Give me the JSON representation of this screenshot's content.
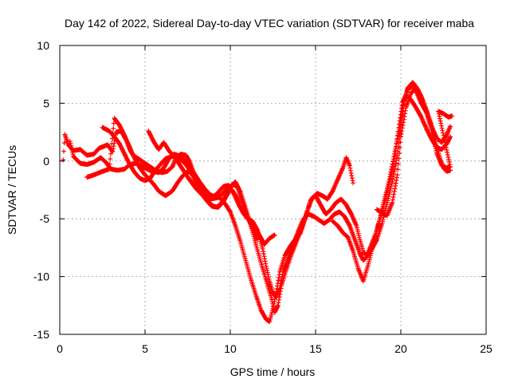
{
  "chart_data": {
    "type": "scatter",
    "title": "Day 142 of 2022, Sidereal Day-to-day VTEC variation (SDTVAR) for receiver maba",
    "xlabel": "GPS time / hours",
    "ylabel": "SDTVAR / TECUs",
    "xlim": [
      0,
      25
    ],
    "ylim": [
      -15,
      10
    ],
    "xticks": [
      0,
      5,
      10,
      15,
      20,
      25
    ],
    "yticks": [
      -15,
      -10,
      -5,
      0,
      5,
      10
    ],
    "grid": true,
    "marker": "+",
    "color": "#ff0000",
    "series": [
      {
        "values": [
          [
            0.2,
            0.1
          ],
          [
            0.3,
            2.3
          ],
          [
            0.5,
            1.4
          ],
          [
            0.8,
            0.9
          ],
          [
            1.2,
            1.0
          ],
          [
            1.6,
            0.5
          ],
          [
            2.0,
            0.6
          ],
          [
            2.3,
            1.1
          ],
          [
            2.8,
            1.4
          ],
          [
            3.1,
            0.8
          ],
          [
            3.3,
            2.5
          ],
          [
            3.6,
            2.6
          ],
          [
            3.9,
            1.8
          ],
          [
            4.1,
            1.0
          ],
          [
            4.3,
            0.5
          ],
          [
            4.6,
            0.2
          ],
          [
            5.0,
            -0.2
          ],
          [
            5.3,
            -0.5
          ],
          [
            5.6,
            -0.8
          ],
          [
            6.0,
            -1.0
          ],
          [
            6.3,
            -0.9
          ],
          [
            6.6,
            -0.5
          ],
          [
            6.8,
            0.2
          ],
          [
            7.1,
            0.6
          ],
          [
            7.4,
            0.5
          ],
          [
            7.6,
            0.0
          ],
          [
            7.8,
            -0.8
          ],
          [
            8.1,
            -1.8
          ],
          [
            8.4,
            -2.8
          ],
          [
            8.7,
            -3.5
          ],
          [
            9.0,
            -3.9
          ],
          [
            9.3,
            -4.0
          ],
          [
            9.6,
            -3.5
          ],
          [
            9.9,
            -2.7
          ],
          [
            10.1,
            -2.0
          ],
          [
            10.4,
            -2.2
          ],
          [
            10.7,
            -3.5
          ],
          [
            11.0,
            -4.8
          ],
          [
            11.2,
            -5.5
          ],
          [
            11.4,
            -6.2
          ],
          [
            11.6,
            -6.8
          ]
        ]
      },
      {
        "values": [
          [
            0.6,
            1.7
          ],
          [
            0.8,
            0.4
          ],
          [
            1.2,
            -0.2
          ],
          [
            1.6,
            -0.3
          ],
          [
            2.0,
            -0.1
          ],
          [
            2.4,
            0.3
          ],
          [
            2.7,
            -0.1
          ],
          [
            3.0,
            -0.7
          ],
          [
            3.4,
            -0.8
          ],
          [
            3.8,
            -0.7
          ],
          [
            4.1,
            -0.3
          ],
          [
            4.5,
            -0.2
          ],
          [
            5.0,
            -0.6
          ],
          [
            5.4,
            -0.9
          ],
          [
            5.8,
            -1.0
          ],
          [
            6.1,
            -0.6
          ],
          [
            6.4,
            0.2
          ],
          [
            6.7,
            0.6
          ],
          [
            7.1,
            0.4
          ],
          [
            7.5,
            -0.2
          ],
          [
            7.8,
            -1.0
          ],
          [
            8.1,
            -1.8
          ],
          [
            8.4,
            -2.6
          ],
          [
            8.7,
            -3.1
          ],
          [
            9.0,
            -3.1
          ],
          [
            9.3,
            -2.7
          ],
          [
            9.6,
            -2.2
          ],
          [
            9.9,
            -2.1
          ],
          [
            10.2,
            -2.8
          ],
          [
            10.5,
            -3.8
          ],
          [
            10.8,
            -4.6
          ],
          [
            11.1,
            -5.1
          ],
          [
            11.4,
            -5.6
          ],
          [
            11.7,
            -6.4
          ],
          [
            12.0,
            -7.2
          ],
          [
            12.3,
            -6.7
          ],
          [
            12.6,
            -6.4
          ]
        ]
      },
      {
        "values": [
          [
            1.6,
            -1.4
          ],
          [
            2.0,
            -1.2
          ],
          [
            2.5,
            -0.9
          ],
          [
            2.9,
            -0.7
          ],
          [
            3.2,
            3.7
          ],
          [
            3.5,
            3.1
          ],
          [
            3.8,
            2.2
          ],
          [
            4.1,
            1.2
          ],
          [
            4.4,
            0.2
          ],
          [
            4.7,
            -0.6
          ],
          [
            5.0,
            -1.2
          ],
          [
            5.2,
            -1.5
          ],
          [
            5.5,
            -2.0
          ],
          [
            5.8,
            -2.6
          ],
          [
            6.2,
            -3.0
          ],
          [
            6.6,
            -2.6
          ],
          [
            6.9,
            -1.9
          ],
          [
            7.2,
            -1.3
          ],
          [
            7.5,
            -0.9
          ],
          [
            7.9,
            -1.1
          ],
          [
            8.2,
            -1.8
          ],
          [
            8.5,
            -2.4
          ],
          [
            8.8,
            -2.9
          ],
          [
            9.1,
            -3.1
          ],
          [
            9.4,
            -3.2
          ],
          [
            9.7,
            -3.7
          ],
          [
            10.0,
            -4.4
          ],
          [
            10.3,
            -5.6
          ],
          [
            10.6,
            -7.0
          ],
          [
            10.9,
            -8.6
          ],
          [
            11.2,
            -10.2
          ],
          [
            11.5,
            -11.6
          ],
          [
            11.8,
            -12.9
          ],
          [
            12.1,
            -13.7
          ],
          [
            12.3,
            -13.9
          ],
          [
            12.5,
            -12.8
          ],
          [
            12.7,
            -11.3
          ],
          [
            12.9,
            -9.6
          ],
          [
            13.2,
            -8.2
          ],
          [
            13.5,
            -7.4
          ],
          [
            13.8,
            -6.8
          ],
          [
            14.1,
            -6.0
          ]
        ]
      },
      {
        "values": [
          [
            2.5,
            2.9
          ],
          [
            2.9,
            2.6
          ],
          [
            3.2,
            2.1
          ],
          [
            3.5,
            1.5
          ],
          [
            3.8,
            0.6
          ],
          [
            4.1,
            -0.3
          ],
          [
            4.4,
            -1.0
          ],
          [
            4.7,
            -1.5
          ],
          [
            5.0,
            -1.7
          ],
          [
            5.3,
            -1.5
          ],
          [
            5.6,
            -0.8
          ],
          [
            5.9,
            -0.3
          ],
          [
            6.2,
            0.2
          ],
          [
            6.6,
            0.4
          ],
          [
            6.9,
            0.3
          ],
          [
            7.2,
            0.0
          ],
          [
            7.5,
            -0.5
          ],
          [
            7.8,
            -1.3
          ],
          [
            8.0,
            -2.1
          ],
          [
            8.3,
            -2.8
          ],
          [
            8.6,
            -3.4
          ],
          [
            8.9,
            -3.9
          ],
          [
            9.2,
            -4.0
          ],
          [
            9.5,
            -3.6
          ],
          [
            9.8,
            -2.8
          ],
          [
            10.1,
            -2.1
          ],
          [
            10.3,
            -1.8
          ],
          [
            10.6,
            -2.7
          ],
          [
            10.9,
            -4.1
          ],
          [
            11.2,
            -5.5
          ],
          [
            11.5,
            -7.2
          ],
          [
            11.8,
            -8.8
          ],
          [
            12.1,
            -10.3
          ],
          [
            12.4,
            -11.8
          ],
          [
            12.6,
            -13.1
          ],
          [
            12.8,
            -12.5
          ],
          [
            13.0,
            -10.8
          ],
          [
            13.3,
            -9.3
          ],
          [
            13.6,
            -8.0
          ],
          [
            13.9,
            -6.9
          ],
          [
            14.2,
            -5.8
          ],
          [
            14.5,
            -4.4
          ],
          [
            14.8,
            -3.2
          ],
          [
            15.1,
            -2.8
          ],
          [
            15.4,
            -3.0
          ],
          [
            15.7,
            -3.3
          ],
          [
            16.0,
            -2.6
          ],
          [
            16.3,
            -1.6
          ],
          [
            16.6,
            -0.6
          ],
          [
            16.8,
            0.3
          ],
          [
            17.0,
            -0.4
          ],
          [
            17.2,
            -1.9
          ]
        ]
      },
      {
        "values": [
          [
            5.2,
            2.6
          ],
          [
            5.5,
            1.7
          ],
          [
            5.8,
            1.0
          ],
          [
            6.1,
            1.6
          ],
          [
            6.4,
            0.9
          ],
          [
            6.8,
            0.2
          ],
          [
            7.2,
            -0.7
          ],
          [
            7.6,
            -1.6
          ],
          [
            8.0,
            -2.4
          ],
          [
            8.4,
            -3.0
          ],
          [
            8.8,
            -3.3
          ],
          [
            9.2,
            -3.2
          ],
          [
            9.5,
            -2.9
          ],
          [
            9.8,
            -2.4
          ],
          [
            10.1,
            -2.5
          ],
          [
            10.4,
            -3.2
          ],
          [
            10.7,
            -4.3
          ],
          [
            11.0,
            -5.0
          ],
          [
            11.3,
            -5.2
          ],
          [
            11.6,
            -6.0
          ],
          [
            11.9,
            -7.6
          ],
          [
            12.1,
            -9.1
          ],
          [
            12.3,
            -10.4
          ],
          [
            12.5,
            -11.4
          ],
          [
            12.7,
            -11.8
          ],
          [
            12.9,
            -11.0
          ],
          [
            13.1,
            -9.6
          ],
          [
            13.4,
            -8.4
          ],
          [
            13.7,
            -7.2
          ],
          [
            14.0,
            -6.0
          ],
          [
            14.3,
            -5.0
          ],
          [
            14.6,
            -4.6
          ],
          [
            14.9,
            -4.8
          ],
          [
            15.2,
            -5.1
          ],
          [
            15.5,
            -5.4
          ],
          [
            15.8,
            -5.1
          ],
          [
            16.1,
            -4.6
          ],
          [
            16.4,
            -4.4
          ],
          [
            16.7,
            -4.8
          ],
          [
            17.0,
            -5.6
          ],
          [
            17.3,
            -6.8
          ],
          [
            17.6,
            -8.0
          ],
          [
            17.8,
            -8.6
          ],
          [
            18.0,
            -8.3
          ],
          [
            18.3,
            -7.6
          ],
          [
            18.6,
            -6.8
          ],
          [
            18.9,
            -5.4
          ],
          [
            19.2,
            -3.6
          ],
          [
            19.5,
            -1.8
          ],
          [
            19.8,
            0.5
          ],
          [
            20.0,
            3.0
          ],
          [
            20.2,
            5.2
          ],
          [
            20.4,
            6.2
          ],
          [
            20.7,
            6.5
          ],
          [
            20.9,
            6.0
          ],
          [
            21.2,
            5.0
          ],
          [
            21.5,
            4.2
          ],
          [
            21.8,
            3.0
          ],
          [
            22.1,
            2.0
          ],
          [
            22.4,
            1.6
          ],
          [
            22.7,
            2.3
          ],
          [
            22.9,
            3.0
          ]
        ]
      },
      {
        "values": [
          [
            14.1,
            -6.3
          ],
          [
            14.4,
            -4.9
          ],
          [
            14.7,
            -3.4
          ],
          [
            15.0,
            -3.0
          ],
          [
            15.3,
            -3.8
          ],
          [
            15.6,
            -4.6
          ],
          [
            15.9,
            -4.2
          ],
          [
            16.2,
            -3.6
          ],
          [
            16.5,
            -3.3
          ],
          [
            16.8,
            -3.8
          ],
          [
            17.1,
            -4.6
          ],
          [
            17.4,
            -5.6
          ],
          [
            17.6,
            -6.8
          ],
          [
            17.8,
            -7.9
          ],
          [
            18.0,
            -8.2
          ],
          [
            18.2,
            -7.5
          ],
          [
            18.5,
            -6.4
          ],
          [
            18.8,
            -4.9
          ],
          [
            19.1,
            -3.3
          ],
          [
            19.4,
            -1.5
          ],
          [
            19.7,
            0.9
          ],
          [
            19.9,
            3.2
          ],
          [
            20.1,
            5.1
          ],
          [
            20.3,
            5.7
          ],
          [
            20.6,
            5.3
          ],
          [
            20.9,
            4.6
          ],
          [
            21.2,
            3.8
          ],
          [
            21.5,
            2.8
          ],
          [
            21.8,
            1.9
          ],
          [
            22.1,
            1.2
          ],
          [
            22.4,
            1.0
          ],
          [
            22.7,
            1.5
          ],
          [
            22.9,
            2.1
          ]
        ]
      },
      {
        "values": [
          [
            16.0,
            -5.2
          ],
          [
            16.3,
            -5.6
          ],
          [
            16.6,
            -6.2
          ],
          [
            16.9,
            -6.6
          ],
          [
            17.2,
            -7.8
          ],
          [
            17.5,
            -9.3
          ],
          [
            17.8,
            -10.4
          ],
          [
            18.1,
            -8.9
          ],
          [
            18.4,
            -7.1
          ],
          [
            18.7,
            -5.4
          ],
          [
            19.0,
            -3.6
          ],
          [
            19.3,
            -1.8
          ],
          [
            19.6,
            0.4
          ],
          [
            19.9,
            2.6
          ],
          [
            20.1,
            4.6
          ],
          [
            20.4,
            6.3
          ],
          [
            20.7,
            6.8
          ],
          [
            21.0,
            6.2
          ],
          [
            21.3,
            5.2
          ],
          [
            21.6,
            4.0
          ],
          [
            21.9,
            2.6
          ],
          [
            22.1,
            1.3
          ],
          [
            22.3,
            0.2
          ],
          [
            22.5,
            -0.6
          ],
          [
            22.7,
            -0.9
          ],
          [
            22.9,
            -0.8
          ]
        ]
      },
      {
        "values": [
          [
            18.6,
            -4.2
          ],
          [
            18.9,
            -4.5
          ],
          [
            19.2,
            -4.7
          ],
          [
            19.5,
            -3.6
          ],
          [
            19.8,
            -1.2
          ],
          [
            20.0,
            2.1
          ],
          [
            20.3,
            4.6
          ],
          [
            20.6,
            5.9
          ],
          [
            20.9,
            6.3
          ],
          [
            21.2,
            5.6
          ],
          [
            21.5,
            4.3
          ],
          [
            21.8,
            2.6
          ],
          [
            22.1,
            0.7
          ],
          [
            22.4,
            -0.4
          ],
          [
            22.7,
            -0.6
          ],
          [
            22.9,
            -0.5
          ],
          [
            22.2,
            4.3
          ],
          [
            22.5,
            4.1
          ],
          [
            22.8,
            3.8
          ],
          [
            23.0,
            3.9
          ]
        ]
      }
    ]
  }
}
